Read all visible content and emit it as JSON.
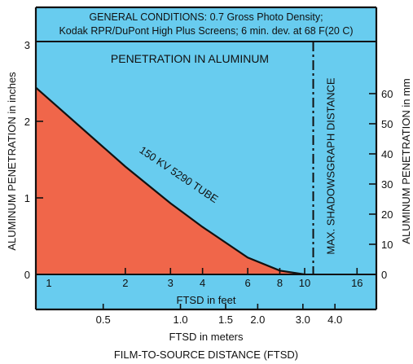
{
  "chart_data": {
    "type": "area",
    "title_lines": [
      "GENERAL CONDITIONS: 0.7 Gross Photo Density;",
      "Kodak RPR/DuPont High Plus Screens; 6 min. dev. at 68  F(20  C)"
    ],
    "inner_title": "PENETRATION IN ALUMINUM",
    "ylabel_left": "ALUMINUM PENETRATION in inches",
    "ylabel_right": "ALUMINUM PENETRATION in mm",
    "xlabel_feet": "FTSD in feet",
    "xlabel_meters": "FTSD in meters",
    "xlabel_main": "FILM-TO-SOURCE DISTANCE (FTSD)",
    "x_scale": "log",
    "x_range_feet": [
      1,
      20
    ],
    "y_range_inches": [
      0,
      3
    ],
    "y_range_mm": [
      0,
      76.2
    ],
    "x_ticks_feet": [
      "1",
      "2",
      "3",
      "4",
      "6",
      "8",
      "10",
      "16"
    ],
    "x_tick_values_feet": [
      1,
      2,
      3,
      4,
      6,
      8,
      10,
      16
    ],
    "x_ticks_meters": [
      "0.5",
      "1.0",
      "1.5",
      "2.0",
      "3.0",
      "4.0"
    ],
    "x_tick_values_meters": [
      0.5,
      1.0,
      1.5,
      2.0,
      3.0,
      4.0
    ],
    "y_ticks_inches": [
      "0",
      "1",
      "2",
      "3"
    ],
    "y_tick_values_inches": [
      0,
      1,
      2,
      3
    ],
    "y_ticks_mm": [
      "0",
      "10",
      "20",
      "30",
      "40",
      "50",
      "60"
    ],
    "y_tick_values_mm": [
      0,
      10,
      20,
      30,
      40,
      50,
      60
    ],
    "series": [
      {
        "name": "150 KV 5290 TUBE",
        "x_feet": [
          1,
          2,
          3,
          4,
          6,
          8,
          10
        ],
        "y_inches": [
          2.3,
          1.41,
          0.93,
          0.62,
          0.22,
          0.05,
          0.0
        ]
      }
    ],
    "vertical_line": {
      "x_feet": 10.8,
      "label": "MAX. SHADOWSGRAPH DISTANCE",
      "style": "dash-dot"
    },
    "colors": {
      "background": "#68ccef",
      "area_fill": "#f0664a",
      "text": "#111111",
      "line": "#111111"
    }
  }
}
